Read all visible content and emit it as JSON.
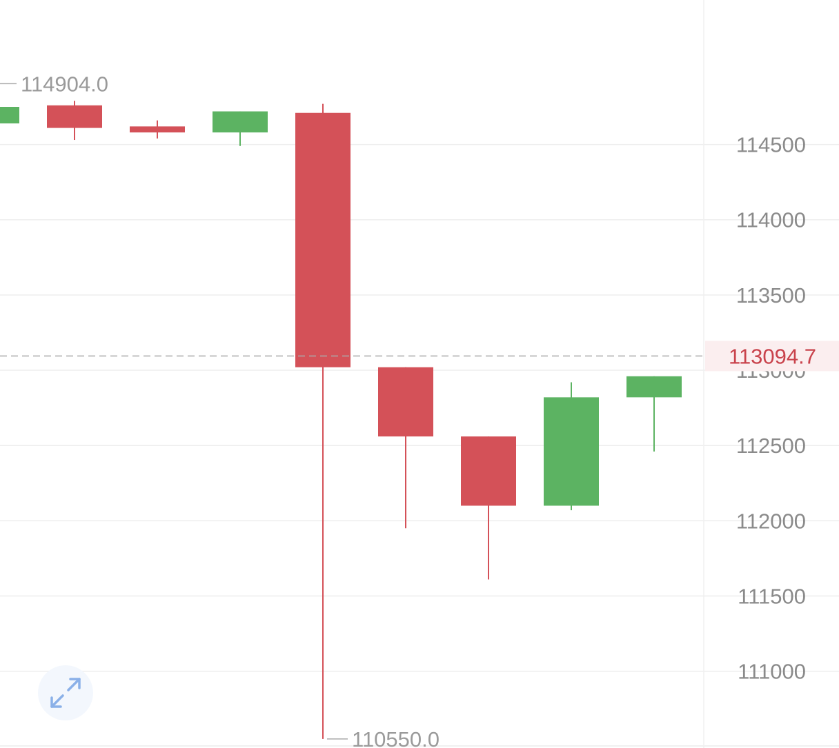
{
  "chart_data": {
    "type": "candlestick",
    "y_ticks": [
      "114500",
      "114000",
      "113500",
      "113000",
      "112500",
      "112000",
      "111500",
      "111000"
    ],
    "y_tick_values": [
      114500,
      114000,
      113500,
      113000,
      112500,
      112000,
      111500,
      111000
    ],
    "ylim": [
      110490,
      115460
    ],
    "grid": true,
    "candles": [
      {
        "open": 114640,
        "close": 114750,
        "high": 114760,
        "low": 114640,
        "direction": "up"
      },
      {
        "open": 114760,
        "close": 114610,
        "high": 114790,
        "low": 114530,
        "direction": "down"
      },
      {
        "open": 114620,
        "close": 114580,
        "high": 114660,
        "low": 114540,
        "direction": "down"
      },
      {
        "open": 114580,
        "close": 114720,
        "high": 114720,
        "low": 114490,
        "direction": "up"
      },
      {
        "open": 114710,
        "close": 113020,
        "high": 114770,
        "low": 110550,
        "direction": "down"
      },
      {
        "open": 113020,
        "close": 112560,
        "high": 113020,
        "low": 111950,
        "direction": "down"
      },
      {
        "open": 112560,
        "close": 112100,
        "high": 112560,
        "low": 111610,
        "direction": "down"
      },
      {
        "open": 112100,
        "close": 112820,
        "high": 112920,
        "low": 112070,
        "direction": "up"
      },
      {
        "open": 112820,
        "close": 112960,
        "high": 112960,
        "low": 112460,
        "direction": "up"
      }
    ],
    "annotations": {
      "high_label": "114904.0",
      "high_value": 114904.0,
      "low_label": "110550.0",
      "low_value": 110550.0
    },
    "current_price": {
      "label": "113094.7",
      "value": 113094.7
    }
  },
  "colors": {
    "up": "#5cb362",
    "down": "#d45158",
    "grid": "#eeeeee",
    "price_line": "#aaaaaa",
    "price_label_text": "#c9434c",
    "price_label_bg": "#fbeeef",
    "expand_icon": "#8ab0e8"
  },
  "controls": {
    "expand_icon": "expand-arrows-icon"
  }
}
